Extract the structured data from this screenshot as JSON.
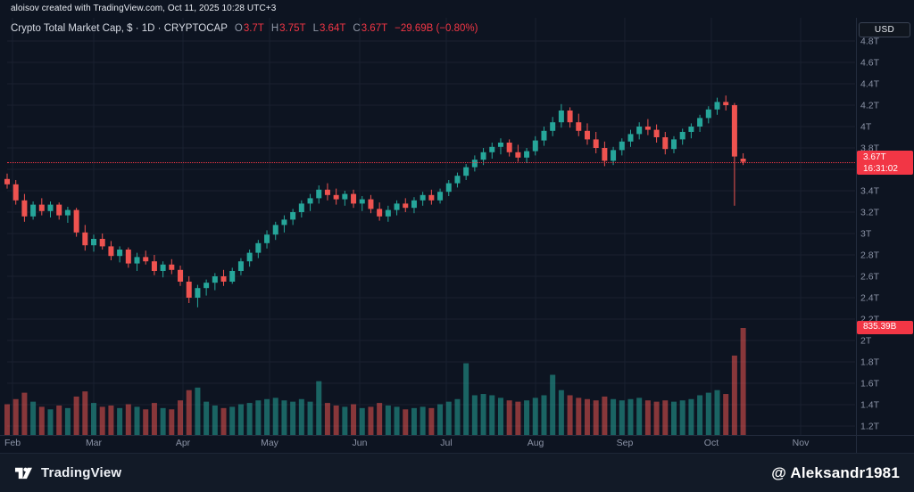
{
  "attribution": "aloisov created with TradingView.com, Oct 11, 2025 10:28 UTC+3",
  "toolbar": {
    "currency_label": "USD"
  },
  "legend": {
    "title": "Crypto Total Market Cap, $ · 1D · CRYPTOCAP",
    "ohlc": [
      {
        "k": "O",
        "v": "3.7T"
      },
      {
        "k": "H",
        "v": "3.75T"
      },
      {
        "k": "L",
        "v": "3.64T"
      },
      {
        "k": "C",
        "v": "3.67T"
      }
    ],
    "change": "−29.69B (−0.80%)"
  },
  "price_label": {
    "value": "3.67T",
    "countdown": "16:31:02"
  },
  "volume_label": {
    "value": "835.39B"
  },
  "footer": {
    "brand": "TradingView",
    "watermark": "@ Aleksandr1981"
  },
  "chart_data": {
    "type": "candlestick",
    "title": "Crypto Total Market Cap, $",
    "symbol": "CRYPTOCAP",
    "interval": "1D",
    "currency": "USD",
    "price_axis": {
      "min": 1.2,
      "max": 4.8,
      "step": 0.2,
      "unit": "T",
      "side": "right"
    },
    "time_axis": [
      {
        "label": "Feb",
        "f": 0.0063
      },
      {
        "label": "Mar",
        "f": 0.1021
      },
      {
        "label": "Apr",
        "f": 0.2074
      },
      {
        "label": "May",
        "f": 0.3095
      },
      {
        "label": "Jun",
        "f": 0.4158
      },
      {
        "label": "Jul",
        "f": 0.5179
      },
      {
        "label": "Aug",
        "f": 0.6232
      },
      {
        "label": "Sep",
        "f": 0.7284
      },
      {
        "label": "Oct",
        "f": 0.8305
      },
      {
        "label": "Nov",
        "f": 0.9358
      }
    ],
    "last_candle_f": 0.868,
    "grid": true,
    "current_price": 3.67,
    "last_volume_b": 835.39,
    "colors": {
      "up": "#26a69a",
      "down": "#ef5350",
      "vol_up": "rgba(38,166,154,0.55)",
      "vol_down": "rgba(239,83,80,0.55)",
      "label_bg": "#f23645",
      "grid": "#1a2130",
      "separator": "#232c3d",
      "tick_text": "#8b93a6"
    },
    "candles_note": "each candle = [open,high,low,close,volume_billions], values in trillions USD, ~3-day compression of daily series Feb–Oct 11 2025",
    "candles": [
      [
        3.51,
        3.56,
        3.42,
        3.46,
        240
      ],
      [
        3.46,
        3.5,
        3.27,
        3.31,
        280
      ],
      [
        3.31,
        3.37,
        3.11,
        3.16,
        330
      ],
      [
        3.16,
        3.3,
        3.13,
        3.27,
        260
      ],
      [
        3.27,
        3.33,
        3.17,
        3.21,
        220
      ],
      [
        3.21,
        3.3,
        3.15,
        3.27,
        200
      ],
      [
        3.27,
        3.29,
        3.13,
        3.17,
        230
      ],
      [
        3.17,
        3.25,
        3.1,
        3.22,
        210
      ],
      [
        3.22,
        3.24,
        2.97,
        3.01,
        300
      ],
      [
        3.01,
        3.08,
        2.84,
        2.89,
        340
      ],
      [
        2.89,
        2.99,
        2.83,
        2.95,
        250
      ],
      [
        2.95,
        3.0,
        2.85,
        2.88,
        220
      ],
      [
        2.88,
        2.93,
        2.75,
        2.79,
        230
      ],
      [
        2.79,
        2.88,
        2.73,
        2.85,
        210
      ],
      [
        2.85,
        2.87,
        2.68,
        2.72,
        240
      ],
      [
        2.72,
        2.82,
        2.65,
        2.78,
        220
      ],
      [
        2.78,
        2.84,
        2.71,
        2.74,
        200
      ],
      [
        2.74,
        2.8,
        2.61,
        2.65,
        250
      ],
      [
        2.65,
        2.74,
        2.59,
        2.71,
        210
      ],
      [
        2.71,
        2.76,
        2.62,
        2.66,
        200
      ],
      [
        2.66,
        2.7,
        2.51,
        2.55,
        270
      ],
      [
        2.55,
        2.6,
        2.35,
        2.4,
        350
      ],
      [
        2.4,
        2.52,
        2.31,
        2.49,
        370
      ],
      [
        2.49,
        2.57,
        2.42,
        2.54,
        260
      ],
      [
        2.54,
        2.63,
        2.47,
        2.6,
        230
      ],
      [
        2.6,
        2.66,
        2.51,
        2.55,
        210
      ],
      [
        2.55,
        2.68,
        2.53,
        2.65,
        220
      ],
      [
        2.65,
        2.77,
        2.61,
        2.74,
        240
      ],
      [
        2.74,
        2.85,
        2.69,
        2.82,
        250
      ],
      [
        2.82,
        2.94,
        2.77,
        2.91,
        270
      ],
      [
        2.91,
        3.03,
        2.86,
        2.99,
        280
      ],
      [
        2.99,
        3.11,
        2.94,
        3.08,
        290
      ],
      [
        3.08,
        3.17,
        3.01,
        3.13,
        270
      ],
      [
        3.13,
        3.23,
        3.08,
        3.2,
        260
      ],
      [
        3.2,
        3.31,
        3.15,
        3.28,
        280
      ],
      [
        3.28,
        3.37,
        3.21,
        3.33,
        260
      ],
      [
        3.33,
        3.45,
        3.28,
        3.41,
        420
      ],
      [
        3.41,
        3.47,
        3.31,
        3.36,
        250
      ],
      [
        3.36,
        3.42,
        3.27,
        3.32,
        230
      ],
      [
        3.32,
        3.4,
        3.26,
        3.37,
        220
      ],
      [
        3.37,
        3.41,
        3.24,
        3.28,
        240
      ],
      [
        3.28,
        3.35,
        3.21,
        3.32,
        210
      ],
      [
        3.32,
        3.36,
        3.19,
        3.23,
        220
      ],
      [
        3.23,
        3.29,
        3.12,
        3.16,
        250
      ],
      [
        3.16,
        3.26,
        3.11,
        3.22,
        230
      ],
      [
        3.22,
        3.31,
        3.17,
        3.28,
        220
      ],
      [
        3.28,
        3.33,
        3.2,
        3.24,
        200
      ],
      [
        3.24,
        3.34,
        3.19,
        3.31,
        210
      ],
      [
        3.31,
        3.39,
        3.26,
        3.36,
        220
      ],
      [
        3.36,
        3.41,
        3.27,
        3.31,
        210
      ],
      [
        3.31,
        3.42,
        3.28,
        3.39,
        240
      ],
      [
        3.39,
        3.5,
        3.35,
        3.47,
        260
      ],
      [
        3.47,
        3.57,
        3.43,
        3.54,
        280
      ],
      [
        3.54,
        3.65,
        3.5,
        3.62,
        560
      ],
      [
        3.62,
        3.73,
        3.58,
        3.69,
        310
      ],
      [
        3.69,
        3.8,
        3.64,
        3.76,
        320
      ],
      [
        3.76,
        3.85,
        3.7,
        3.81,
        310
      ],
      [
        3.81,
        3.89,
        3.74,
        3.85,
        290
      ],
      [
        3.85,
        3.88,
        3.72,
        3.76,
        270
      ],
      [
        3.76,
        3.83,
        3.67,
        3.71,
        260
      ],
      [
        3.71,
        3.8,
        3.66,
        3.77,
        270
      ],
      [
        3.77,
        3.91,
        3.73,
        3.87,
        290
      ],
      [
        3.87,
        4.0,
        3.82,
        3.96,
        310
      ],
      [
        3.96,
        4.09,
        3.91,
        4.04,
        470
      ],
      [
        4.04,
        4.21,
        3.99,
        4.15,
        350
      ],
      [
        4.15,
        4.18,
        3.99,
        4.04,
        310
      ],
      [
        4.04,
        4.12,
        3.91,
        3.96,
        290
      ],
      [
        3.96,
        4.03,
        3.83,
        3.88,
        280
      ],
      [
        3.88,
        3.95,
        3.75,
        3.8,
        270
      ],
      [
        3.8,
        3.86,
        3.63,
        3.68,
        300
      ],
      [
        3.68,
        3.81,
        3.64,
        3.78,
        280
      ],
      [
        3.78,
        3.89,
        3.73,
        3.86,
        270
      ],
      [
        3.86,
        3.97,
        3.81,
        3.93,
        280
      ],
      [
        3.93,
        4.04,
        3.88,
        4.0,
        290
      ],
      [
        4.0,
        4.07,
        3.92,
        3.97,
        270
      ],
      [
        3.97,
        4.02,
        3.85,
        3.9,
        260
      ],
      [
        3.9,
        3.95,
        3.74,
        3.79,
        270
      ],
      [
        3.79,
        3.91,
        3.75,
        3.88,
        260
      ],
      [
        3.88,
        3.98,
        3.83,
        3.95,
        270
      ],
      [
        3.95,
        4.03,
        3.89,
        4.0,
        280
      ],
      [
        4.0,
        4.11,
        3.95,
        4.08,
        310
      ],
      [
        4.08,
        4.19,
        4.03,
        4.16,
        330
      ],
      [
        4.16,
        4.27,
        4.11,
        4.23,
        350
      ],
      [
        4.23,
        4.29,
        4.15,
        4.2,
        320
      ],
      [
        4.2,
        4.22,
        3.26,
        3.72,
        620
      ],
      [
        3.7,
        3.75,
        3.64,
        3.67,
        835.39
      ]
    ]
  }
}
